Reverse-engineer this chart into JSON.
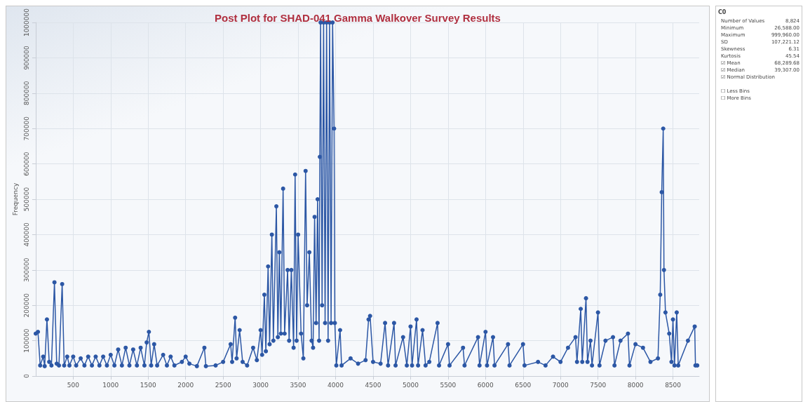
{
  "chart_data": [
    {
      "type": "line",
      "title": "Post Plot for SHAD-041 Gamma Walkover Survey Results",
      "ylabel": "Frequency",
      "color": "#2c57a5",
      "marker": "circle",
      "grid": true,
      "x": [
        0,
        30,
        60,
        100,
        120,
        150,
        180,
        210,
        250,
        280,
        310,
        353,
        380,
        420,
        450,
        500,
        540,
        600,
        650,
        700,
        750,
        800,
        850,
        900,
        950,
        1000,
        1050,
        1100,
        1150,
        1200,
        1250,
        1300,
        1350,
        1400,
        1450,
        1480,
        1510,
        1540,
        1580,
        1620,
        1700,
        1750,
        1800,
        1850,
        1950,
        2000,
        2050,
        2150,
        2250,
        2270,
        2400,
        2500,
        2600,
        2620,
        2660,
        2680,
        2720,
        2760,
        2820,
        2900,
        2950,
        3000,
        3020,
        3050,
        3070,
        3100,
        3120,
        3150,
        3170,
        3210,
        3230,
        3250,
        3270,
        3300,
        3320,
        3360,
        3380,
        3410,
        3440,
        3460,
        3480,
        3500,
        3540,
        3570,
        3600,
        3620,
        3650,
        3680,
        3700,
        3720,
        3740,
        3760,
        3780,
        3790,
        3800,
        3820,
        3840,
        3860,
        3880,
        3900,
        3920,
        3940,
        3960,
        3980,
        3990,
        4010,
        4060,
        4080,
        4200,
        4300,
        4400,
        4440,
        4460,
        4500,
        4600,
        4660,
        4700,
        4780,
        4800,
        4900,
        4950,
        5000,
        5020,
        5080,
        5100,
        5160,
        5200,
        5250,
        5360,
        5380,
        5500,
        5520,
        5700,
        5720,
        5900,
        5920,
        6000,
        6020,
        6100,
        6120,
        6300,
        6320,
        6500,
        6520,
        6700,
        6800,
        6900,
        7000,
        7100,
        7200,
        7220,
        7270,
        7290,
        7340,
        7360,
        7400,
        7420,
        7500,
        7520,
        7600,
        7700,
        7720,
        7800,
        7900,
        7920,
        8000,
        8100,
        8200,
        8300,
        8330,
        8350,
        8370,
        8380,
        8400,
        8450,
        8480,
        8500,
        8520,
        8550,
        8570,
        8700,
        8790,
        8800,
        8824
      ],
      "values": [
        120000,
        125000,
        30000,
        55000,
        28000,
        160000,
        40000,
        30000,
        265000,
        35000,
        30000,
        260000,
        30000,
        55000,
        30000,
        55000,
        30000,
        50000,
        30000,
        55000,
        30000,
        55000,
        30000,
        55000,
        30000,
        60000,
        30000,
        75000,
        30000,
        80000,
        30000,
        75000,
        30000,
        80000,
        30000,
        95000,
        125000,
        30000,
        90000,
        30000,
        60000,
        30000,
        55000,
        30000,
        40000,
        55000,
        35000,
        28000,
        80000,
        28000,
        30000,
        40000,
        90000,
        40000,
        165000,
        50000,
        130000,
        40000,
        30000,
        80000,
        45000,
        130000,
        60000,
        230000,
        70000,
        310000,
        90000,
        400000,
        100000,
        480000,
        110000,
        350000,
        120000,
        530000,
        120000,
        300000,
        100000,
        300000,
        80000,
        570000,
        100000,
        400000,
        120000,
        50000,
        580000,
        200000,
        350000,
        100000,
        80000,
        450000,
        150000,
        500000,
        100000,
        620000,
        1000000,
        200000,
        1000000,
        150000,
        1000000,
        100000,
        1000000,
        150000,
        1000000,
        700000,
        150000,
        30000,
        130000,
        30000,
        50000,
        35000,
        45000,
        160000,
        170000,
        40000,
        35000,
        150000,
        30000,
        150000,
        30000,
        110000,
        30000,
        140000,
        30000,
        160000,
        30000,
        130000,
        30000,
        40000,
        150000,
        30000,
        90000,
        30000,
        80000,
        30000,
        110000,
        30000,
        125000,
        30000,
        110000,
        30000,
        90000,
        30000,
        90000,
        30000,
        40000,
        30000,
        55000,
        40000,
        80000,
        110000,
        40000,
        190000,
        40000,
        220000,
        40000,
        100000,
        30000,
        180000,
        30000,
        100000,
        110000,
        30000,
        100000,
        120000,
        30000,
        90000,
        80000,
        40000,
        50000,
        230000,
        520000,
        700000,
        300000,
        180000,
        120000,
        40000,
        160000,
        30000,
        180000,
        30000,
        100000,
        140000,
        30000,
        30000
      ],
      "xlim": [
        0,
        8850
      ],
      "xticks": [
        500,
        1000,
        1500,
        2000,
        2500,
        3000,
        3500,
        4000,
        4500,
        5000,
        5500,
        6000,
        6500,
        7000,
        7500,
        8000,
        8500
      ],
      "ylim": [
        0,
        1000000
      ],
      "yticks": [
        0,
        100000,
        200000,
        300000,
        400000,
        500000,
        600000,
        700000,
        800000,
        900000,
        1000000
      ]
    },
    {
      "type": "other",
      "title": "C0",
      "categories": [
        "Number of Values",
        "Minimum",
        "Maximum",
        "SD",
        "Skewness",
        "Kurtosis",
        "☑ Mean",
        "☑ Median",
        "☑ Normal Distribution",
        "☐ Less Bins",
        "☐ More Bins"
      ],
      "values": [
        8824,
        26588,
        999960,
        107221.12,
        6.31,
        45.54,
        68289.68,
        39307,
        null,
        null,
        null
      ],
      "value_labels": [
        "8,824",
        "26,588.00",
        "999,960.00",
        "107,221.12",
        "6.31",
        "45.54",
        "68,289.68",
        "39,307.00",
        null,
        null,
        null
      ]
    }
  ]
}
